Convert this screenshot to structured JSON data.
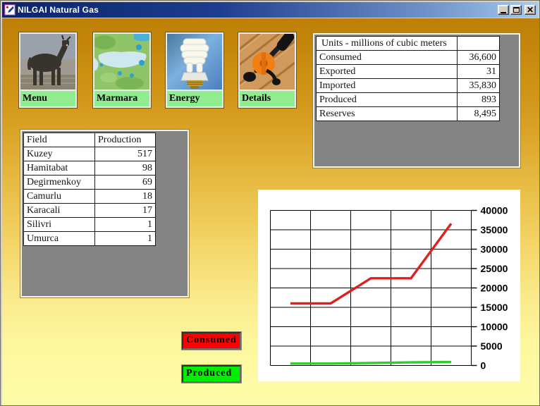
{
  "window": {
    "title": "NILGAI Natural Gas"
  },
  "nav_buttons": [
    {
      "label": "Menu",
      "icon": "nilgai-photo"
    },
    {
      "label": "Marmara",
      "icon": "marmara-map"
    },
    {
      "label": "Energy",
      "icon": "cfl-bulb"
    },
    {
      "label": "Details",
      "icon": "hand-drill"
    }
  ],
  "summary_table": {
    "header": "Units - millions of cubic meters",
    "rows": [
      [
        "Consumed",
        "36,600"
      ],
      [
        "Exported",
        "31"
      ],
      [
        "Imported",
        "35,830"
      ],
      [
        "Produced",
        "893"
      ],
      [
        "Reserves",
        "8,495"
      ]
    ]
  },
  "field_table": {
    "columns": [
      "Field",
      "Production"
    ],
    "rows": [
      [
        "Kuzey",
        "517"
      ],
      [
        "Hamitabat",
        "98"
      ],
      [
        "Degirmenkoy",
        "69"
      ],
      [
        "Camurlu",
        "18"
      ],
      [
        "Karacali",
        "17"
      ],
      [
        "Silivri",
        "1"
      ],
      [
        "Umurca",
        "1"
      ]
    ]
  },
  "legend_buttons": [
    {
      "label": "Consumed",
      "color": "#ff0000"
    },
    {
      "label": "Produced",
      "color": "#00ee00"
    }
  ],
  "chart_data": {
    "type": "line",
    "x": [
      1,
      2,
      3,
      4,
      5
    ],
    "x_tick_labels": [],
    "series": [
      {
        "name": "Consumed",
        "color": "#dd2020",
        "values": [
          16000,
          16000,
          22500,
          22500,
          36600
        ]
      },
      {
        "name": "Produced",
        "color": "#2ecc2e",
        "values": [
          500,
          500,
          650,
          800,
          893
        ]
      }
    ],
    "ylim": [
      0,
      40000
    ],
    "yticks": [
      0,
      5000,
      10000,
      15000,
      20000,
      25000,
      30000,
      35000,
      40000
    ],
    "ytick_side": "right",
    "grid": true,
    "legend_position": "external-buttons",
    "title": ""
  },
  "colors": {
    "titlebar_left": "#0a246a",
    "titlebar_right": "#a6caf0",
    "background_top": "#bd7f06",
    "background_bottom": "#fffca9",
    "nav_label_green": "#90ee90",
    "panel_gray": "#848484"
  }
}
